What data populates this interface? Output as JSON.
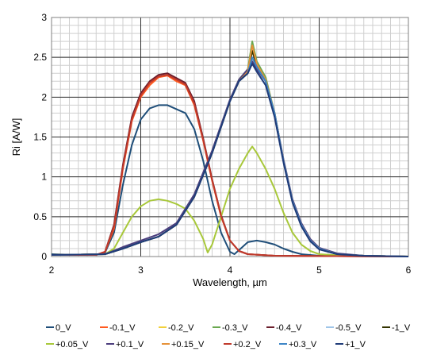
{
  "chart_data": {
    "type": "line",
    "xlabel": "Wavelength, µm",
    "ylabel": "Ri [A/W]",
    "xlim": [
      2,
      6
    ],
    "ylim": [
      0,
      3
    ],
    "x_ticks": [
      "2",
      "3",
      "4",
      "5",
      "6"
    ],
    "y_ticks": [
      "0",
      "0.5",
      "1",
      "1.5",
      "2",
      "2.5",
      "3"
    ],
    "grid": true,
    "legend_position": "bottom",
    "series": [
      {
        "name": "0_V",
        "color": "#1f4e79",
        "points": [
          [
            2,
            0.03
          ],
          [
            2.3,
            0.02
          ],
          [
            2.5,
            0.02
          ],
          [
            2.6,
            0.05
          ],
          [
            2.7,
            0.3
          ],
          [
            2.8,
            0.9
          ],
          [
            2.9,
            1.4
          ],
          [
            3.0,
            1.72
          ],
          [
            3.1,
            1.86
          ],
          [
            3.2,
            1.9
          ],
          [
            3.3,
            1.9
          ],
          [
            3.4,
            1.85
          ],
          [
            3.5,
            1.8
          ],
          [
            3.6,
            1.6
          ],
          [
            3.7,
            1.2
          ],
          [
            3.8,
            0.7
          ],
          [
            3.9,
            0.3
          ],
          [
            4.0,
            0.06
          ],
          [
            4.05,
            0.03
          ],
          [
            4.1,
            0.08
          ],
          [
            4.2,
            0.18
          ],
          [
            4.3,
            0.2
          ],
          [
            4.4,
            0.18
          ],
          [
            4.5,
            0.15
          ],
          [
            4.6,
            0.1
          ],
          [
            4.7,
            0.06
          ],
          [
            4.8,
            0.03
          ],
          [
            5.0,
            0.01
          ],
          [
            6.0,
            0.0
          ]
        ]
      },
      {
        "name": "-0.1_V",
        "color": "#ff5a1f",
        "points": [
          [
            2,
            0.02
          ],
          [
            2.5,
            0.02
          ],
          [
            2.6,
            0.06
          ],
          [
            2.7,
            0.35
          ],
          [
            2.8,
            1.1
          ],
          [
            2.9,
            1.7
          ],
          [
            3.0,
            2.0
          ],
          [
            3.1,
            2.15
          ],
          [
            3.2,
            2.25
          ],
          [
            3.3,
            2.27
          ],
          [
            3.4,
            2.2
          ],
          [
            3.5,
            2.15
          ],
          [
            3.6,
            1.9
          ],
          [
            3.7,
            1.45
          ],
          [
            3.8,
            0.95
          ],
          [
            3.9,
            0.5
          ],
          [
            4.0,
            0.2
          ],
          [
            4.1,
            0.07
          ],
          [
            4.2,
            0.03
          ],
          [
            4.5,
            0.01
          ],
          [
            6.0,
            0.0
          ]
        ]
      },
      {
        "name": "-0.2_V",
        "color": "#f2d03b",
        "points": [
          [
            2,
            0.02
          ],
          [
            2.6,
            0.03
          ],
          [
            2.8,
            0.1
          ],
          [
            3.0,
            0.18
          ],
          [
            3.2,
            0.25
          ],
          [
            3.4,
            0.4
          ],
          [
            3.6,
            0.75
          ],
          [
            3.8,
            1.3
          ],
          [
            4.0,
            1.95
          ],
          [
            4.1,
            2.2
          ],
          [
            4.2,
            2.3
          ],
          [
            4.25,
            2.6
          ],
          [
            4.3,
            2.4
          ],
          [
            4.4,
            2.2
          ],
          [
            4.5,
            1.8
          ],
          [
            4.6,
            1.2
          ],
          [
            4.7,
            0.7
          ],
          [
            4.8,
            0.4
          ],
          [
            4.9,
            0.2
          ],
          [
            5.0,
            0.1
          ],
          [
            5.2,
            0.03
          ],
          [
            5.5,
            0.01
          ],
          [
            6.0,
            0.0
          ]
        ]
      },
      {
        "name": "-0.3_V",
        "color": "#6aa84f",
        "points": [
          [
            2,
            0.02
          ],
          [
            2.6,
            0.03
          ],
          [
            2.8,
            0.1
          ],
          [
            3.0,
            0.18
          ],
          [
            3.2,
            0.25
          ],
          [
            3.4,
            0.4
          ],
          [
            3.6,
            0.75
          ],
          [
            3.8,
            1.3
          ],
          [
            4.0,
            1.95
          ],
          [
            4.1,
            2.22
          ],
          [
            4.2,
            2.35
          ],
          [
            4.25,
            2.7
          ],
          [
            4.3,
            2.45
          ],
          [
            4.4,
            2.25
          ],
          [
            4.5,
            1.8
          ],
          [
            4.6,
            1.2
          ],
          [
            4.7,
            0.7
          ],
          [
            4.8,
            0.4
          ],
          [
            4.9,
            0.2
          ],
          [
            5.0,
            0.1
          ],
          [
            5.2,
            0.03
          ],
          [
            5.5,
            0.01
          ],
          [
            6.0,
            0.0
          ]
        ]
      },
      {
        "name": "-0.4_V",
        "color": "#6b1e2c",
        "points": [
          [
            2,
            0.02
          ],
          [
            2.5,
            0.02
          ],
          [
            2.6,
            0.06
          ],
          [
            2.7,
            0.4
          ],
          [
            2.8,
            1.15
          ],
          [
            2.9,
            1.75
          ],
          [
            3.0,
            2.05
          ],
          [
            3.1,
            2.2
          ],
          [
            3.2,
            2.28
          ],
          [
            3.3,
            2.3
          ],
          [
            3.4,
            2.24
          ],
          [
            3.5,
            2.18
          ],
          [
            3.6,
            1.95
          ],
          [
            3.7,
            1.48
          ],
          [
            3.8,
            0.97
          ],
          [
            3.9,
            0.52
          ],
          [
            4.0,
            0.2
          ],
          [
            4.1,
            0.07
          ],
          [
            4.2,
            0.03
          ],
          [
            4.5,
            0.01
          ],
          [
            6.0,
            0.0
          ]
        ]
      },
      {
        "name": "-0.5_V",
        "color": "#9fc5e8",
        "points": [
          [
            2,
            0.02
          ],
          [
            2.6,
            0.03
          ],
          [
            2.8,
            0.1
          ],
          [
            3.0,
            0.18
          ],
          [
            3.2,
            0.25
          ],
          [
            3.4,
            0.4
          ],
          [
            3.6,
            0.75
          ],
          [
            3.8,
            1.3
          ],
          [
            4.0,
            1.95
          ],
          [
            4.1,
            2.2
          ],
          [
            4.2,
            2.32
          ],
          [
            4.25,
            2.62
          ],
          [
            4.3,
            2.42
          ],
          [
            4.4,
            2.2
          ],
          [
            4.5,
            1.8
          ],
          [
            4.6,
            1.2
          ],
          [
            4.7,
            0.7
          ],
          [
            4.8,
            0.4
          ],
          [
            4.9,
            0.2
          ],
          [
            5.0,
            0.1
          ],
          [
            5.2,
            0.03
          ],
          [
            5.5,
            0.01
          ],
          [
            6.0,
            0.0
          ]
        ]
      },
      {
        "name": "-1_V",
        "color": "#333300",
        "points": [
          [
            2,
            0.02
          ],
          [
            2.6,
            0.03
          ],
          [
            2.8,
            0.1
          ],
          [
            3.0,
            0.18
          ],
          [
            3.2,
            0.25
          ],
          [
            3.4,
            0.4
          ],
          [
            3.6,
            0.75
          ],
          [
            3.8,
            1.3
          ],
          [
            4.0,
            1.95
          ],
          [
            4.1,
            2.2
          ],
          [
            4.2,
            2.3
          ],
          [
            4.25,
            2.58
          ],
          [
            4.3,
            2.4
          ],
          [
            4.4,
            2.2
          ],
          [
            4.5,
            1.8
          ],
          [
            4.6,
            1.2
          ],
          [
            4.7,
            0.7
          ],
          [
            4.8,
            0.4
          ],
          [
            4.9,
            0.2
          ],
          [
            5.0,
            0.1
          ],
          [
            5.2,
            0.03
          ],
          [
            5.5,
            0.01
          ],
          [
            6.0,
            0.0
          ]
        ]
      },
      {
        "name": "+0.05_V",
        "color": "#a8c83a",
        "points": [
          [
            2,
            0.02
          ],
          [
            2.6,
            0.03
          ],
          [
            2.7,
            0.1
          ],
          [
            2.8,
            0.3
          ],
          [
            2.9,
            0.5
          ],
          [
            3.0,
            0.63
          ],
          [
            3.1,
            0.7
          ],
          [
            3.2,
            0.72
          ],
          [
            3.3,
            0.7
          ],
          [
            3.4,
            0.66
          ],
          [
            3.5,
            0.6
          ],
          [
            3.6,
            0.45
          ],
          [
            3.7,
            0.22
          ],
          [
            3.75,
            0.05
          ],
          [
            3.8,
            0.15
          ],
          [
            3.9,
            0.5
          ],
          [
            4.0,
            0.85
          ],
          [
            4.1,
            1.1
          ],
          [
            4.2,
            1.3
          ],
          [
            4.25,
            1.38
          ],
          [
            4.3,
            1.3
          ],
          [
            4.4,
            1.1
          ],
          [
            4.5,
            0.85
          ],
          [
            4.6,
            0.55
          ],
          [
            4.7,
            0.3
          ],
          [
            4.8,
            0.15
          ],
          [
            4.9,
            0.07
          ],
          [
            5.0,
            0.03
          ],
          [
            5.3,
            0.01
          ],
          [
            6.0,
            0.0
          ]
        ]
      },
      {
        "name": "+0.1_V",
        "color": "#4b3d7d",
        "points": [
          [
            2,
            0.02
          ],
          [
            2.6,
            0.03
          ],
          [
            2.8,
            0.12
          ],
          [
            3.0,
            0.2
          ],
          [
            3.2,
            0.28
          ],
          [
            3.4,
            0.42
          ],
          [
            3.6,
            0.78
          ],
          [
            3.8,
            1.33
          ],
          [
            4.0,
            1.97
          ],
          [
            4.1,
            2.22
          ],
          [
            4.2,
            2.35
          ],
          [
            4.25,
            2.45
          ],
          [
            4.3,
            2.35
          ],
          [
            4.4,
            2.2
          ],
          [
            4.5,
            1.8
          ],
          [
            4.6,
            1.22
          ],
          [
            4.7,
            0.72
          ],
          [
            4.8,
            0.42
          ],
          [
            4.9,
            0.22
          ],
          [
            5.0,
            0.11
          ],
          [
            5.2,
            0.04
          ],
          [
            5.5,
            0.01
          ],
          [
            6.0,
            0.0
          ]
        ]
      },
      {
        "name": "+0.15_V",
        "color": "#e69138",
        "points": [
          [
            2,
            0.02
          ],
          [
            2.6,
            0.03
          ],
          [
            2.8,
            0.1
          ],
          [
            3.0,
            0.18
          ],
          [
            3.2,
            0.25
          ],
          [
            3.4,
            0.4
          ],
          [
            3.6,
            0.75
          ],
          [
            3.8,
            1.3
          ],
          [
            4.0,
            1.95
          ],
          [
            4.1,
            2.2
          ],
          [
            4.2,
            2.32
          ],
          [
            4.25,
            2.65
          ],
          [
            4.3,
            2.42
          ],
          [
            4.4,
            2.22
          ],
          [
            4.5,
            1.8
          ],
          [
            4.6,
            1.2
          ],
          [
            4.7,
            0.7
          ],
          [
            4.8,
            0.4
          ],
          [
            4.9,
            0.2
          ],
          [
            5.0,
            0.1
          ],
          [
            5.2,
            0.03
          ],
          [
            5.5,
            0.01
          ],
          [
            6.0,
            0.0
          ]
        ]
      },
      {
        "name": "+0.2_V",
        "color": "#c0392b",
        "points": [
          [
            2,
            0.02
          ],
          [
            2.5,
            0.02
          ],
          [
            2.6,
            0.06
          ],
          [
            2.7,
            0.38
          ],
          [
            2.8,
            1.12
          ],
          [
            2.9,
            1.72
          ],
          [
            3.0,
            2.02
          ],
          [
            3.1,
            2.18
          ],
          [
            3.2,
            2.26
          ],
          [
            3.3,
            2.28
          ],
          [
            3.4,
            2.22
          ],
          [
            3.5,
            2.16
          ],
          [
            3.6,
            1.92
          ],
          [
            3.7,
            1.46
          ],
          [
            3.8,
            0.96
          ],
          [
            3.9,
            0.51
          ],
          [
            4.0,
            0.2
          ],
          [
            4.1,
            0.07
          ],
          [
            4.2,
            0.03
          ],
          [
            4.5,
            0.01
          ],
          [
            6.0,
            0.0
          ]
        ]
      },
      {
        "name": "+0.3_V",
        "color": "#3d85c6",
        "points": [
          [
            2,
            0.02
          ],
          [
            2.6,
            0.03
          ],
          [
            2.8,
            0.1
          ],
          [
            3.0,
            0.18
          ],
          [
            3.2,
            0.25
          ],
          [
            3.4,
            0.4
          ],
          [
            3.6,
            0.75
          ],
          [
            3.8,
            1.3
          ],
          [
            4.0,
            1.95
          ],
          [
            4.1,
            2.2
          ],
          [
            4.2,
            2.3
          ],
          [
            4.25,
            2.5
          ],
          [
            4.3,
            2.38
          ],
          [
            4.4,
            2.2
          ],
          [
            4.5,
            1.8
          ],
          [
            4.6,
            1.2
          ],
          [
            4.7,
            0.7
          ],
          [
            4.8,
            0.4
          ],
          [
            4.9,
            0.2
          ],
          [
            5.0,
            0.1
          ],
          [
            5.2,
            0.03
          ],
          [
            5.5,
            0.01
          ],
          [
            6.0,
            0.0
          ]
        ]
      },
      {
        "name": "+1_V",
        "color": "#1f3b78",
        "points": [
          [
            2,
            0.02
          ],
          [
            2.6,
            0.03
          ],
          [
            2.8,
            0.1
          ],
          [
            3.0,
            0.18
          ],
          [
            3.2,
            0.25
          ],
          [
            3.4,
            0.4
          ],
          [
            3.6,
            0.75
          ],
          [
            3.8,
            1.3
          ],
          [
            4.0,
            1.95
          ],
          [
            4.1,
            2.2
          ],
          [
            4.2,
            2.3
          ],
          [
            4.25,
            2.42
          ],
          [
            4.3,
            2.32
          ],
          [
            4.4,
            2.15
          ],
          [
            4.5,
            1.75
          ],
          [
            4.6,
            1.18
          ],
          [
            4.7,
            0.68
          ],
          [
            4.8,
            0.38
          ],
          [
            4.9,
            0.19
          ],
          [
            5.0,
            0.09
          ],
          [
            5.2,
            0.03
          ],
          [
            5.5,
            0.01
          ],
          [
            6.0,
            0.0
          ]
        ]
      }
    ]
  }
}
